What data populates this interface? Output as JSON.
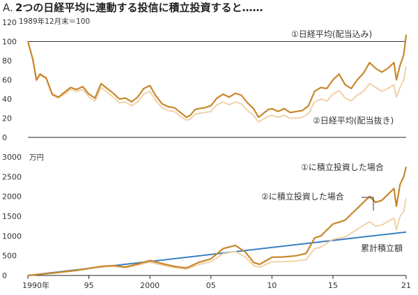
{
  "header": {
    "prefix": "A.",
    "title": "2つの日経平均に連動する投信に積立投資すると……"
  },
  "chart_data": [
    {
      "type": "line",
      "note": "1989年12月末＝100",
      "ylim": [
        0,
        120
      ],
      "yticks": [
        "0",
        "20",
        "40",
        "60",
        "80",
        "100",
        "120"
      ],
      "xlim": [
        1990,
        2021
      ],
      "reference_line": 100,
      "series": [
        {
          "name": "①日経平均(配当込み)",
          "color": "#c8862a",
          "x": [
            1990,
            1990.4,
            1990.7,
            1991.0,
            1991.5,
            1992.0,
            1992.5,
            1993.0,
            1993.5,
            1994.0,
            1994.5,
            1995.0,
            1995.5,
            1996.0,
            1996.5,
            1997.0,
            1997.5,
            1998.0,
            1998.5,
            1999.0,
            1999.5,
            2000.0,
            2000.5,
            2001.0,
            2001.5,
            2002.0,
            2002.5,
            2003.0,
            2003.3,
            2003.7,
            2004.0,
            2004.5,
            2005.0,
            2005.5,
            2006.0,
            2006.5,
            2007.0,
            2007.5,
            2008.0,
            2008.5,
            2008.9,
            2009.3,
            2009.7,
            2010.0,
            2010.5,
            2011.0,
            2011.5,
            2012.0,
            2012.5,
            2013.0,
            2013.5,
            2014.0,
            2014.5,
            2015.0,
            2015.5,
            2016.0,
            2016.5,
            2017.0,
            2017.5,
            2018.0,
            2018.5,
            2019.0,
            2019.5,
            2020.0,
            2020.2,
            2020.5,
            2020.8,
            2021.0
          ],
          "values": [
            100,
            82,
            60,
            66,
            62,
            45,
            42,
            47,
            52,
            50,
            53,
            45,
            41,
            56,
            51,
            46,
            40,
            41,
            37,
            42,
            51,
            54,
            43,
            35,
            32,
            31,
            26,
            21,
            23,
            29,
            30,
            31,
            33,
            41,
            45,
            42,
            46,
            44,
            36,
            30,
            21,
            25,
            29,
            30,
            27,
            30,
            26,
            27,
            28,
            33,
            48,
            52,
            51,
            60,
            66,
            55,
            51,
            60,
            67,
            78,
            72,
            68,
            72,
            78,
            60,
            75,
            86,
            107
          ]
        },
        {
          "name": "②日経平均(配当抜き)",
          "color": "#f0d2a8",
          "x": [
            1990,
            1990.4,
            1990.7,
            1991.0,
            1991.5,
            1992.0,
            1992.5,
            1993.0,
            1993.5,
            1994.0,
            1994.5,
            1995.0,
            1995.5,
            1996.0,
            1996.5,
            1997.0,
            1997.5,
            1998.0,
            1998.5,
            1999.0,
            1999.5,
            2000.0,
            2000.5,
            2001.0,
            2001.5,
            2002.0,
            2002.5,
            2003.0,
            2003.3,
            2003.7,
            2004.0,
            2004.5,
            2005.0,
            2005.5,
            2006.0,
            2006.5,
            2007.0,
            2007.5,
            2008.0,
            2008.5,
            2008.9,
            2009.3,
            2009.7,
            2010.0,
            2010.5,
            2011.0,
            2011.5,
            2012.0,
            2012.5,
            2013.0,
            2013.5,
            2014.0,
            2014.5,
            2015.0,
            2015.5,
            2016.0,
            2016.5,
            2017.0,
            2017.5,
            2018.0,
            2018.5,
            2019.0,
            2019.5,
            2020.0,
            2020.2,
            2020.5,
            2020.8,
            2021.0
          ],
          "values": [
            100,
            81,
            59,
            65,
            61,
            44,
            41,
            45,
            50,
            48,
            50,
            42,
            38,
            52,
            47,
            42,
            36,
            37,
            33,
            37,
            45,
            48,
            38,
            31,
            28,
            27,
            22,
            18,
            19,
            24,
            25,
            26,
            27,
            34,
            37,
            34,
            37,
            35,
            28,
            23,
            16,
            19,
            22,
            23,
            21,
            23,
            20,
            20,
            21,
            25,
            37,
            40,
            38,
            45,
            49,
            41,
            38,
            44,
            48,
            56,
            52,
            48,
            51,
            55,
            42,
            52,
            60,
            74
          ]
        }
      ],
      "labels": [
        "①日経平均(配当込み)",
        "②日経平均(配当抜き)"
      ]
    },
    {
      "type": "line",
      "unit": "万円",
      "ylim": [
        0,
        3000
      ],
      "yticks": [
        "0",
        "500",
        "1000",
        "1500",
        "2000",
        "2500",
        "3000"
      ],
      "xlim": [
        1990,
        2021
      ],
      "x_tick_values": [
        1990,
        1995,
        2000,
        2005,
        2010,
        2015,
        2021
      ],
      "x_tick_labels": [
        "1990年",
        "95",
        "2000",
        "05",
        "10",
        "15",
        "21"
      ],
      "series": [
        {
          "name": "①に積立投資した場合",
          "color": "#c8862a",
          "x": [
            1990,
            1992,
            1994,
            1996,
            1997,
            1998,
            1999,
            2000,
            2001,
            2002,
            2003,
            2004,
            2005,
            2006,
            2007,
            2007.8,
            2008.5,
            2009,
            2010,
            2011,
            2012,
            2012.8,
            2013.5,
            2014,
            2015,
            2016,
            2017,
            2018,
            2018.5,
            2019,
            2019.5,
            2020,
            2020.2,
            2020.5,
            2020.8,
            2021
          ],
          "values": [
            0,
            60,
            130,
            230,
            250,
            215,
            290,
            380,
            300,
            230,
            190,
            330,
            420,
            680,
            760,
            600,
            330,
            280,
            460,
            470,
            500,
            560,
            950,
            1000,
            1300,
            1400,
            1700,
            2000,
            1850,
            1900,
            2050,
            2200,
            1750,
            2300,
            2500,
            2750
          ]
        },
        {
          "name": "②に積立投資した場合",
          "color": "#f0d2a8",
          "x": [
            1990,
            1992,
            1994,
            1996,
            1997,
            1998,
            1999,
            2000,
            2001,
            2002,
            2003,
            2004,
            2005,
            2006,
            2007,
            2007.8,
            2008.5,
            2009,
            2010,
            2011,
            2012,
            2012.8,
            2013.5,
            2014,
            2015,
            2016,
            2017,
            2018,
            2018.5,
            2019,
            2019.5,
            2020,
            2020.2,
            2020.5,
            2020.8,
            2021
          ],
          "values": [
            0,
            58,
            125,
            215,
            232,
            196,
            260,
            335,
            262,
            196,
            160,
            276,
            345,
            550,
            605,
            470,
            255,
            214,
            345,
            350,
            365,
            405,
            680,
            712,
            915,
            975,
            1170,
            1360,
            1250,
            1275,
            1365,
            1450,
            1150,
            1500,
            1620,
            1950
          ]
        },
        {
          "name": "累計積立額",
          "color": "#3b7fc4",
          "x": [
            1990,
            2021
          ],
          "values": [
            0,
            1100
          ]
        }
      ],
      "labels": [
        "①に積立投資した場合",
        "②に積立投資した場合",
        "累計積立額"
      ]
    }
  ]
}
